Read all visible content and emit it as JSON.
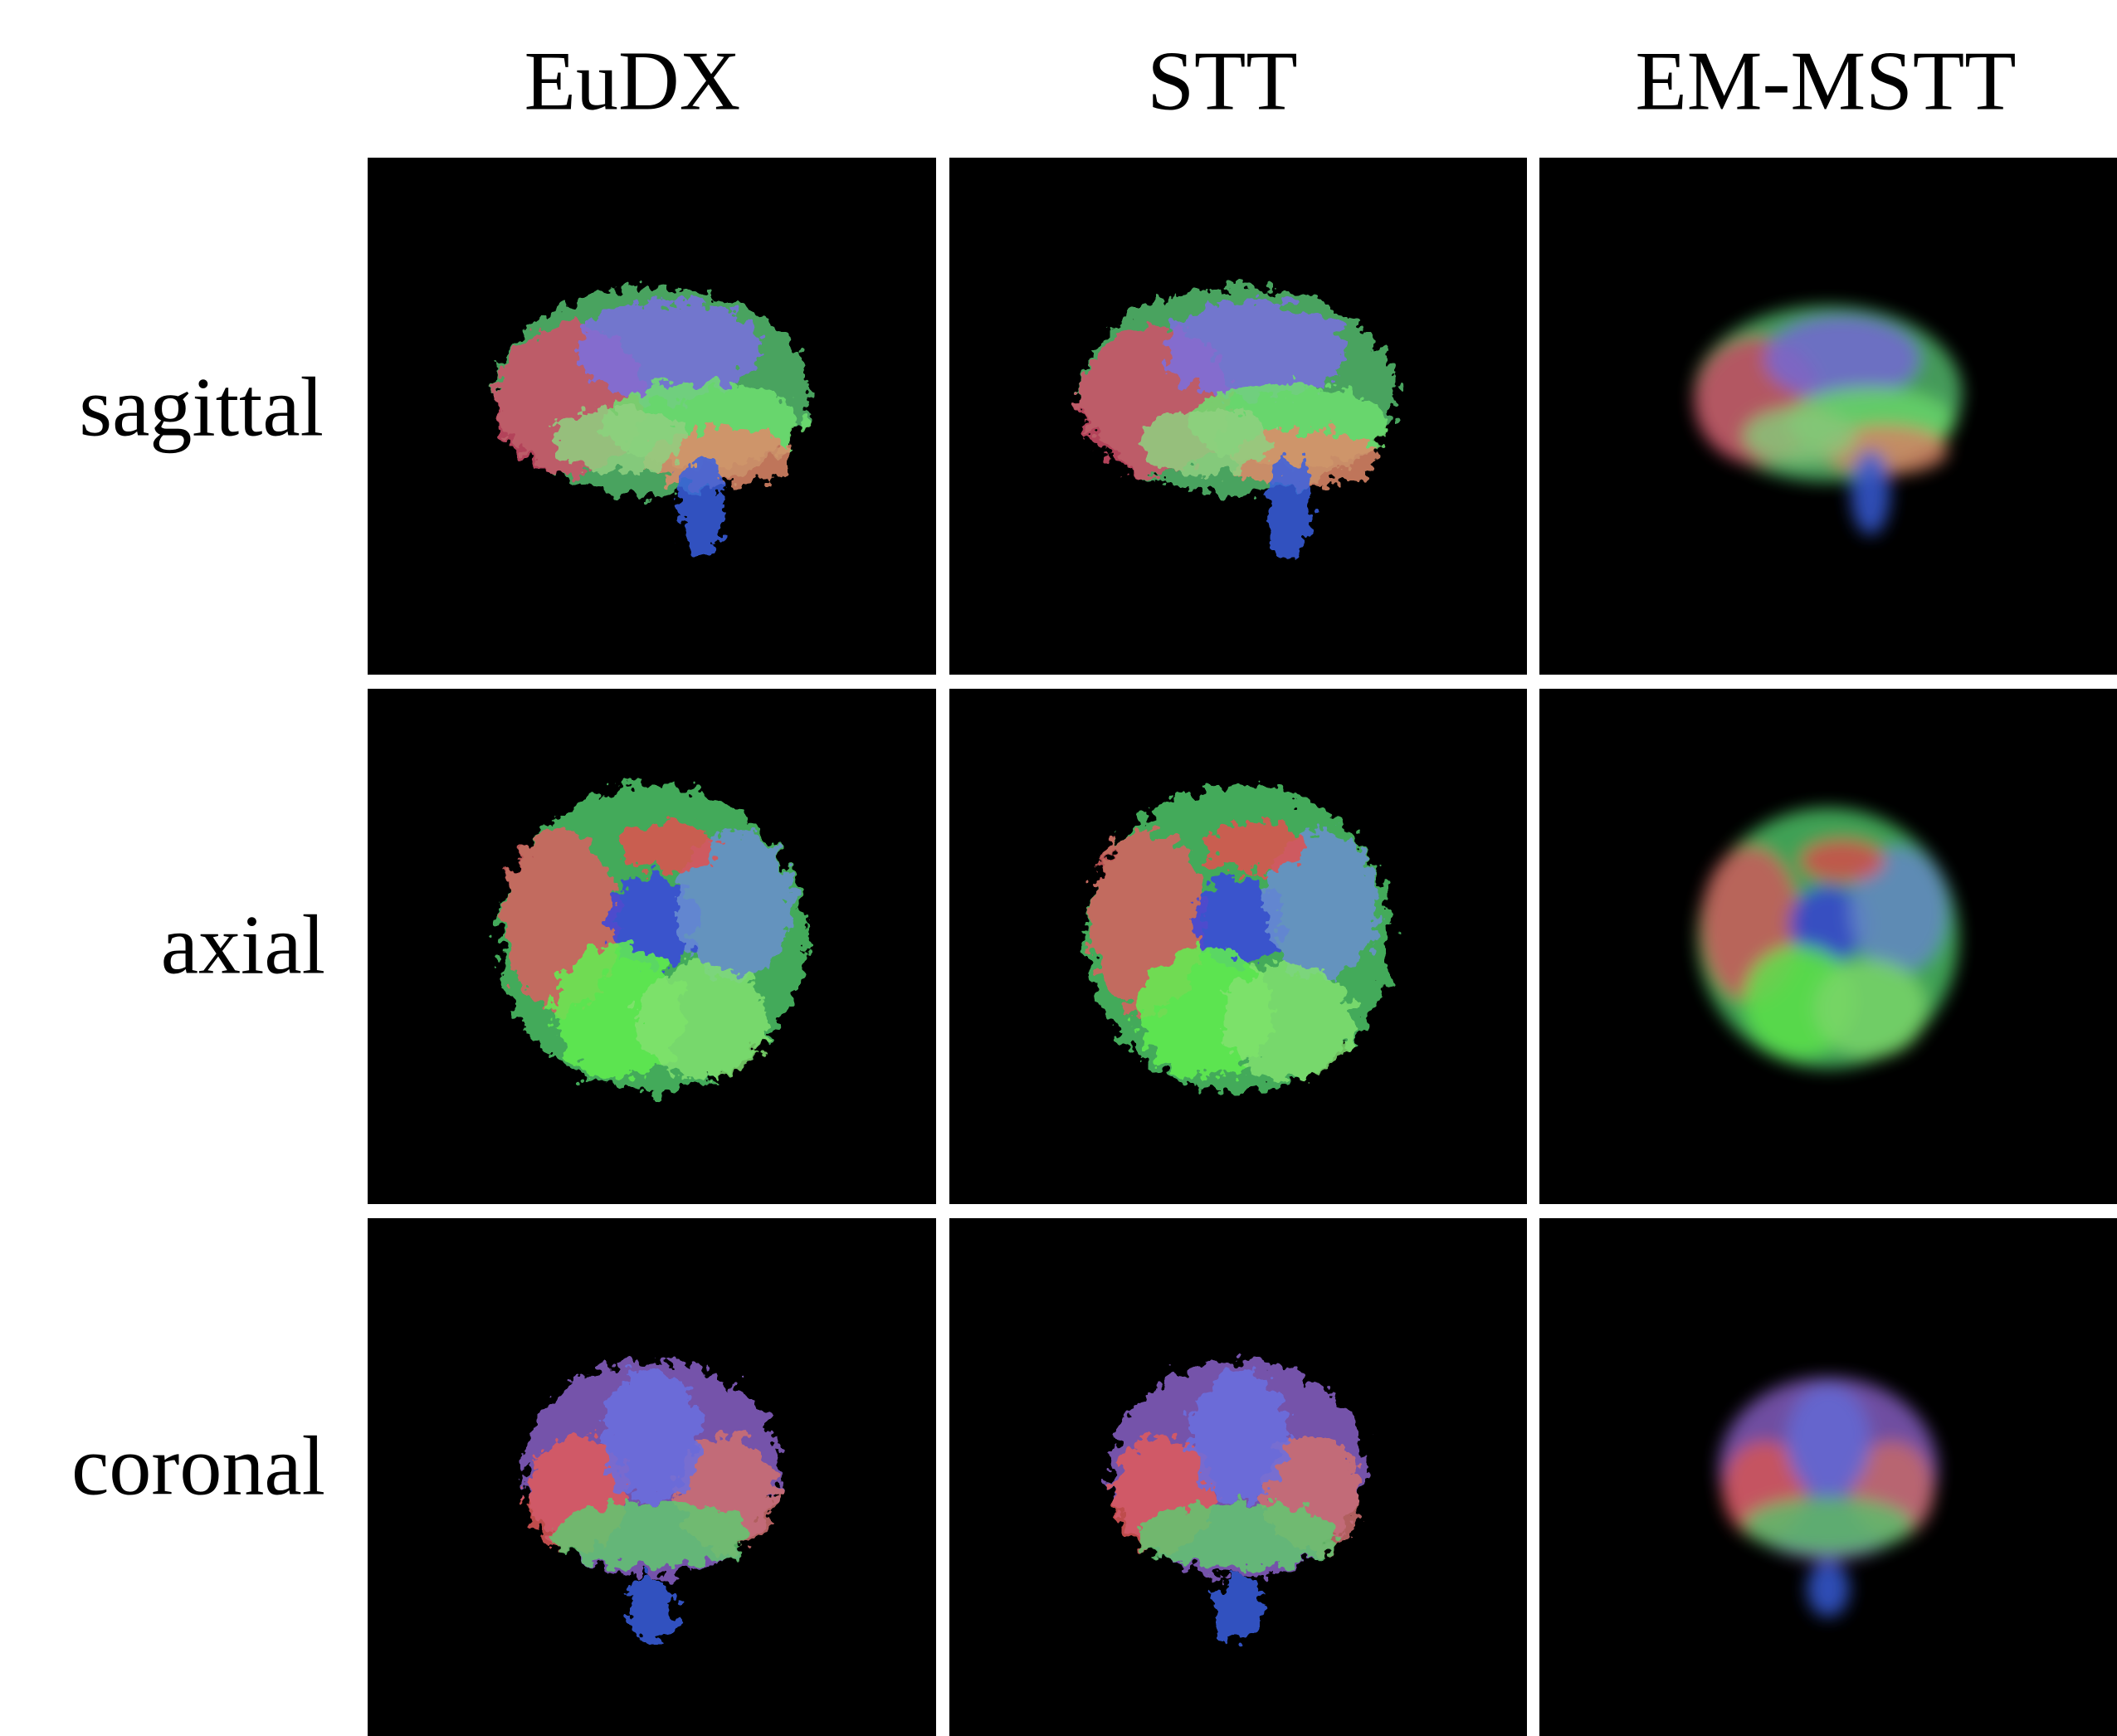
{
  "figure": {
    "columns": [
      "EuDX",
      "STT",
      "EM-MSTT"
    ],
    "rows": [
      "sagittal",
      "axial",
      "coronal"
    ]
  }
}
